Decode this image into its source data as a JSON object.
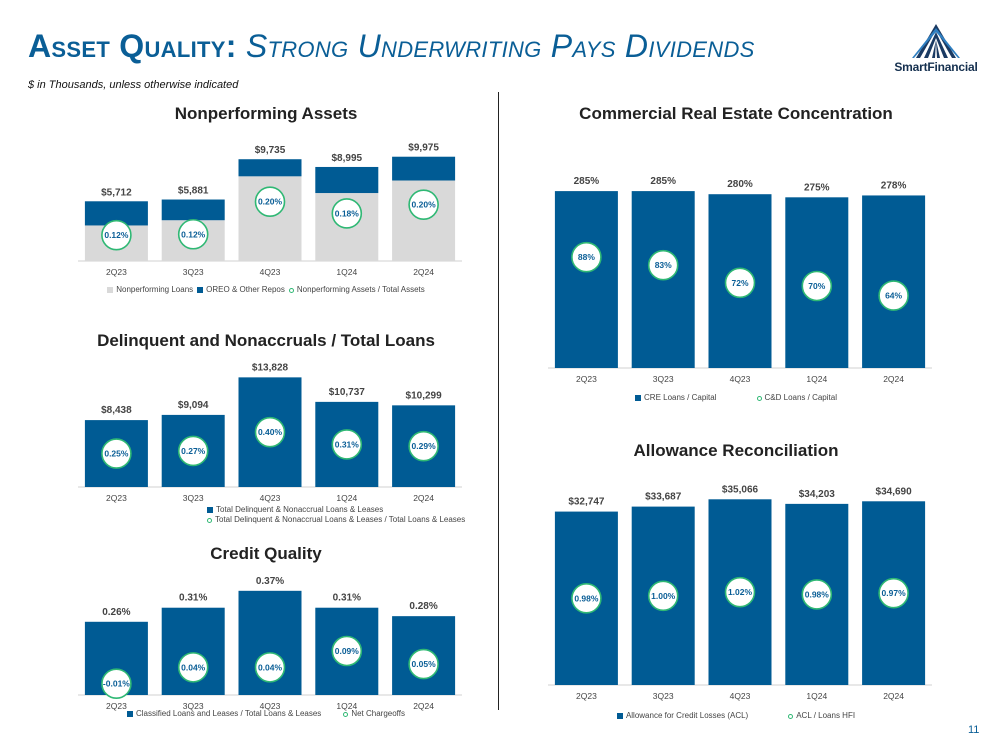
{
  "header": {
    "title_main": "Asset Quality:",
    "title_sub": "Strong Underwriting Pays Dividends",
    "subtitle": "$ in Thousands, unless otherwise indicated",
    "logo_text": "SmartFinancial",
    "page_number": "11"
  },
  "colors": {
    "primary": "#005b94",
    "light_gray": "#d9d9d9",
    "ring_green": "#2fb874",
    "title_blue": "#0a5e96"
  },
  "chart_data": [
    {
      "id": "npa",
      "type": "bar",
      "stacked": true,
      "title": "Nonperforming Assets",
      "categories": [
        "2Q23",
        "3Q23",
        "4Q23",
        "1Q24",
        "2Q24"
      ],
      "series": [
        {
          "name": "Nonperforming Loans",
          "values": [
            3400,
            3900,
            8100,
            6500,
            7700
          ]
        },
        {
          "name": "OREO & Other Repos",
          "values": [
            2312,
            1981,
            1635,
            2495,
            2275
          ]
        }
      ],
      "totals": [
        5712,
        5881,
        9735,
        8995,
        9975
      ],
      "total_labels": [
        "$5,712",
        "$5,881",
        "$9,735",
        "$8,995",
        "$9,975"
      ],
      "ratio_series": {
        "name": "Nonperforming Assets / Total Assets",
        "values": [
          0.12,
          0.12,
          0.2,
          0.18,
          0.2
        ],
        "labels": [
          "0.12%",
          "0.12%",
          "0.20%",
          "0.18%",
          "0.20%"
        ]
      },
      "ylim": [
        0,
        11000
      ]
    },
    {
      "id": "delinquent",
      "type": "bar",
      "title": "Delinquent and Nonaccruals / Total Loans",
      "categories": [
        "2Q23",
        "3Q23",
        "4Q23",
        "1Q24",
        "2Q24"
      ],
      "series": [
        {
          "name": "Total Delinquent & Nonaccrual Loans & Leases",
          "values": [
            8438,
            9094,
            13828,
            10737,
            10299
          ]
        }
      ],
      "value_labels": [
        "$8,438",
        "$9,094",
        "$13,828",
        "$10,737",
        "$10,299"
      ],
      "ratio_series": {
        "name": "Total Delinquent & Nonaccrual Loans & Leases / Total Loans & Leases",
        "values": [
          0.25,
          0.27,
          0.4,
          0.31,
          0.29
        ],
        "labels": [
          "0.25%",
          "0.27%",
          "0.40%",
          "0.31%",
          "0.29%"
        ]
      },
      "ylim": [
        0,
        14000
      ]
    },
    {
      "id": "credit",
      "type": "bar",
      "title": "Credit Quality",
      "categories": [
        "2Q23",
        "3Q23",
        "4Q23",
        "1Q24",
        "2Q24"
      ],
      "series": [
        {
          "name": "Classified Loans and Leases / Total Loans & Leases",
          "values": [
            0.26,
            0.31,
            0.37,
            0.31,
            0.28
          ]
        }
      ],
      "value_labels": [
        "0.26%",
        "0.31%",
        "0.37%",
        "0.31%",
        "0.28%"
      ],
      "ratio_series": {
        "name": "Net Chargeoffs",
        "values": [
          -0.01,
          0.04,
          0.04,
          0.09,
          0.05
        ],
        "labels": [
          "-0.01%",
          "0.04%",
          "0.04%",
          "0.09%",
          "0.05%"
        ]
      },
      "ylim": [
        0,
        0.38
      ]
    },
    {
      "id": "cre",
      "type": "bar",
      "title": "Commercial Real Estate Concentration",
      "categories": [
        "2Q23",
        "3Q23",
        "4Q23",
        "1Q24",
        "2Q24"
      ],
      "series": [
        {
          "name": "CRE Loans / Capital",
          "values": [
            285,
            285,
            280,
            275,
            278
          ]
        }
      ],
      "value_labels": [
        "285%",
        "285%",
        "280%",
        "275%",
        "278%"
      ],
      "ratio_series": {
        "name": "C&D Loans / Capital",
        "values": [
          88,
          83,
          72,
          70,
          64
        ],
        "labels": [
          "88%",
          "83%",
          "72%",
          "70%",
          "64%"
        ]
      },
      "ylim": [
        0,
        290
      ]
    },
    {
      "id": "allowance",
      "type": "bar",
      "title": "Allowance Reconciliation",
      "categories": [
        "2Q23",
        "3Q23",
        "4Q23",
        "1Q24",
        "2Q24"
      ],
      "series": [
        {
          "name": "Allowance for Credit Losses (ACL)",
          "values": [
            32747,
            33687,
            35066,
            34203,
            34690
          ]
        }
      ],
      "value_labels": [
        "$32,747",
        "$33,687",
        "$35,066",
        "$34,203",
        "$34,690"
      ],
      "ratio_series": {
        "name": "ACL / Loans HFI",
        "values": [
          0.98,
          1.0,
          1.02,
          0.98,
          0.97
        ],
        "labels": [
          "0.98%",
          "1.00%",
          "1.02%",
          "0.98%",
          "0.97%"
        ]
      },
      "ylim": [
        0,
        35500
      ]
    }
  ]
}
